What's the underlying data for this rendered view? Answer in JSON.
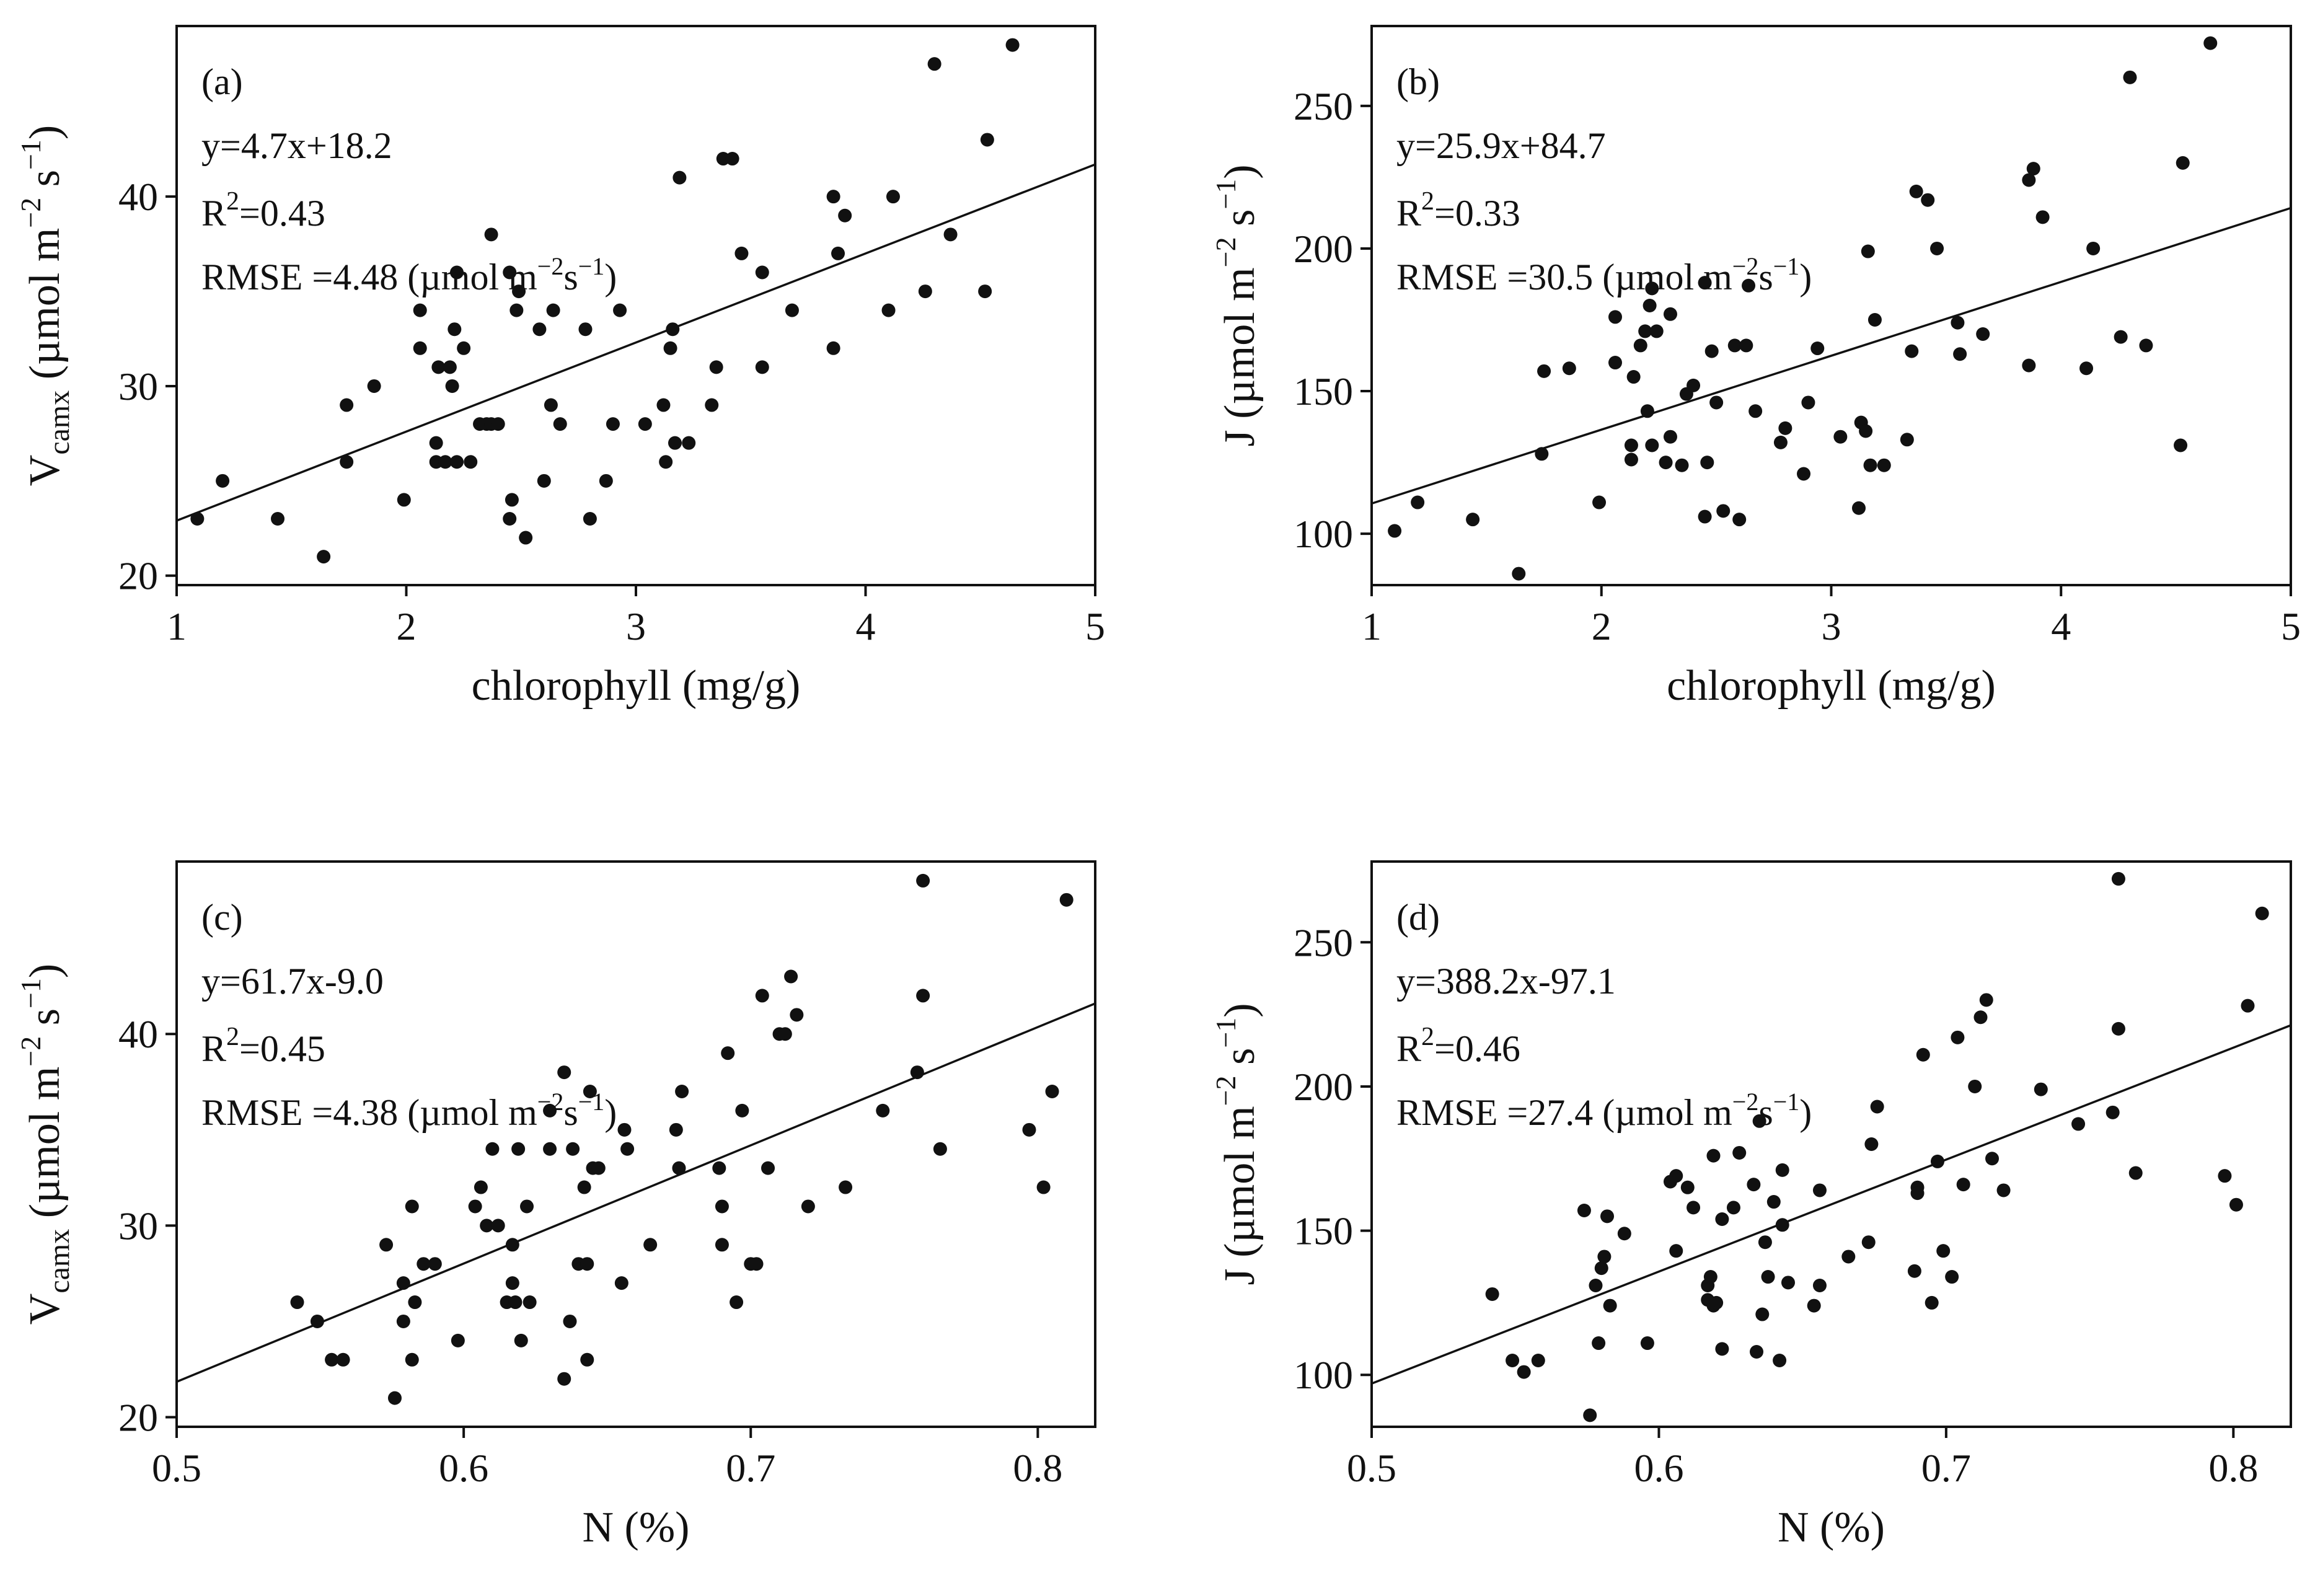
{
  "chart_data": [
    {
      "id": "a",
      "type": "scatter",
      "panel_label": "(a)",
      "equation": "y=4.7x+18.2",
      "r2_prefix": "R",
      "r2_sup": "2",
      "r2_value": "=0.43",
      "rmse_value": "RMSE =4.48",
      "xlabel": "chlorophyll (mg/g)",
      "ylabel_var": "V",
      "ylabel_sub": "camx",
      "xlim": [
        1,
        5
      ],
      "ylim": [
        19.5,
        49
      ],
      "xticks": [
        1,
        2,
        3,
        4,
        5
      ],
      "xtick_labels": [
        "1",
        "2",
        "3",
        "4",
        "5"
      ],
      "yticks": [
        20,
        30,
        40
      ],
      "ytick_labels": [
        "20",
        "30",
        "40"
      ],
      "fit": {
        "slope": 4.7,
        "intercept": 18.2
      },
      "points": [
        [
          1.09,
          23
        ],
        [
          1.2,
          25
        ],
        [
          1.44,
          23
        ],
        [
          1.64,
          21
        ],
        [
          1.74,
          29
        ],
        [
          1.74,
          26
        ],
        [
          1.86,
          30
        ],
        [
          1.99,
          24
        ],
        [
          2.06,
          34
        ],
        [
          2.06,
          32
        ],
        [
          2.13,
          27
        ],
        [
          2.13,
          26
        ],
        [
          2.14,
          31
        ],
        [
          2.17,
          26
        ],
        [
          2.19,
          31
        ],
        [
          2.2,
          30
        ],
        [
          2.21,
          33
        ],
        [
          2.22,
          26
        ],
        [
          2.22,
          36
        ],
        [
          2.25,
          32
        ],
        [
          2.28,
          26
        ],
        [
          2.32,
          28
        ],
        [
          2.35,
          28
        ],
        [
          2.37,
          38
        ],
        [
          2.37,
          28
        ],
        [
          2.4,
          28
        ],
        [
          2.45,
          36
        ],
        [
          2.45,
          23
        ],
        [
          2.46,
          24
        ],
        [
          2.48,
          34
        ],
        [
          2.49,
          35
        ],
        [
          2.52,
          22
        ],
        [
          2.58,
          33
        ],
        [
          2.6,
          25
        ],
        [
          2.63,
          29
        ],
        [
          2.64,
          34
        ],
        [
          2.67,
          28
        ],
        [
          2.78,
          33
        ],
        [
          2.8,
          23
        ],
        [
          2.87,
          25
        ],
        [
          2.9,
          28
        ],
        [
          2.93,
          34
        ],
        [
          3.04,
          28
        ],
        [
          3.12,
          29
        ],
        [
          3.13,
          26
        ],
        [
          3.15,
          32
        ],
        [
          3.16,
          33
        ],
        [
          3.17,
          27
        ],
        [
          3.19,
          41
        ],
        [
          3.23,
          27
        ],
        [
          3.33,
          29
        ],
        [
          3.35,
          31
        ],
        [
          3.38,
          42
        ],
        [
          3.42,
          42
        ],
        [
          3.46,
          37
        ],
        [
          3.55,
          36
        ],
        [
          3.55,
          31
        ],
        [
          3.68,
          34
        ],
        [
          3.86,
          40
        ],
        [
          3.86,
          32
        ],
        [
          3.88,
          37
        ],
        [
          3.91,
          39
        ],
        [
          4.1,
          34
        ],
        [
          4.12,
          40
        ],
        [
          4.26,
          35
        ],
        [
          4.3,
          47
        ],
        [
          4.37,
          38
        ],
        [
          4.52,
          35
        ],
        [
          4.53,
          43
        ],
        [
          4.64,
          48
        ]
      ]
    },
    {
      "id": "b",
      "type": "scatter",
      "panel_label": "(b)",
      "equation": "y=25.9x+84.7",
      "r2_prefix": "R",
      "r2_sup": "2",
      "r2_value": "=0.33",
      "rmse_value": "RMSE =30.5",
      "xlabel": "chlorophyll (mg/g)",
      "ylabel_var": "J",
      "ylabel_sub": "",
      "xlim": [
        1,
        5
      ],
      "ylim": [
        82,
        278
      ],
      "xticks": [
        1,
        2,
        3,
        4,
        5
      ],
      "xtick_labels": [
        "1",
        "2",
        "3",
        "4",
        "5"
      ],
      "yticks": [
        100,
        150,
        200,
        250
      ],
      "ytick_labels": [
        "100",
        "150",
        "200",
        "250"
      ],
      "fit": {
        "slope": 25.9,
        "intercept": 84.7
      },
      "points": [
        [
          1.1,
          101
        ],
        [
          1.2,
          111
        ],
        [
          1.44,
          105
        ],
        [
          1.64,
          86
        ],
        [
          1.74,
          128
        ],
        [
          1.75,
          157
        ],
        [
          1.86,
          158
        ],
        [
          1.99,
          111
        ],
        [
          2.06,
          176
        ],
        [
          2.06,
          160
        ],
        [
          2.13,
          131
        ],
        [
          2.13,
          126
        ],
        [
          2.14,
          155
        ],
        [
          2.17,
          166
        ],
        [
          2.19,
          171
        ],
        [
          2.2,
          143
        ],
        [
          2.21,
          180
        ],
        [
          2.22,
          186
        ],
        [
          2.22,
          131
        ],
        [
          2.24,
          171
        ],
        [
          2.28,
          125
        ],
        [
          2.3,
          177
        ],
        [
          2.3,
          134
        ],
        [
          2.35,
          124
        ],
        [
          2.37,
          149
        ],
        [
          2.4,
          152
        ],
        [
          2.45,
          188
        ],
        [
          2.45,
          106
        ],
        [
          2.46,
          125
        ],
        [
          2.48,
          164
        ],
        [
          2.5,
          146
        ],
        [
          2.53,
          108
        ],
        [
          2.58,
          166
        ],
        [
          2.6,
          105
        ],
        [
          2.63,
          166
        ],
        [
          2.64,
          187
        ],
        [
          2.67,
          143
        ],
        [
          2.78,
          132
        ],
        [
          2.8,
          137
        ],
        [
          2.88,
          121
        ],
        [
          2.9,
          146
        ],
        [
          2.94,
          165
        ],
        [
          3.04,
          134
        ],
        [
          3.12,
          109
        ],
        [
          3.13,
          139
        ],
        [
          3.15,
          136
        ],
        [
          3.16,
          199
        ],
        [
          3.17,
          124
        ],
        [
          3.19,
          175
        ],
        [
          3.23,
          124
        ],
        [
          3.33,
          133
        ],
        [
          3.35,
          164
        ],
        [
          3.37,
          220
        ],
        [
          3.42,
          217
        ],
        [
          3.46,
          200
        ],
        [
          3.55,
          174
        ],
        [
          3.56,
          163
        ],
        [
          3.66,
          170
        ],
        [
          3.86,
          159
        ],
        [
          3.86,
          224
        ],
        [
          3.88,
          228
        ],
        [
          3.92,
          211
        ],
        [
          4.11,
          158
        ],
        [
          4.14,
          200
        ],
        [
          4.26,
          169
        ],
        [
          4.3,
          260
        ],
        [
          4.37,
          166
        ],
        [
          4.52,
          131
        ],
        [
          4.53,
          230
        ],
        [
          4.65,
          272
        ]
      ]
    },
    {
      "id": "c",
      "type": "scatter",
      "panel_label": "(c)",
      "equation": "y=61.7x-9.0",
      "r2_prefix": "R",
      "r2_sup": "2",
      "r2_value": "=0.45",
      "rmse_value": "RMSE =4.38",
      "xlabel": "N (%)",
      "ylabel_var": "V",
      "ylabel_sub": "camx",
      "xlim": [
        0.5,
        0.82
      ],
      "ylim": [
        19.5,
        49
      ],
      "xticks": [
        0.5,
        0.6,
        0.7,
        0.8
      ],
      "xtick_labels": [
        "0.5",
        "0.6",
        "0.7",
        "0.8"
      ],
      "yticks": [
        20,
        30,
        40
      ],
      "ytick_labels": [
        "20",
        "30",
        "40"
      ],
      "fit": {
        "slope": 61.7,
        "intercept": -9.0
      },
      "points": [
        [
          0.542,
          26
        ],
        [
          0.549,
          25
        ],
        [
          0.554,
          23
        ],
        [
          0.558,
          23
        ],
        [
          0.573,
          29
        ],
        [
          0.576,
          21
        ],
        [
          0.579,
          27
        ],
        [
          0.579,
          25
        ],
        [
          0.582,
          31
        ],
        [
          0.582,
          23
        ],
        [
          0.583,
          26
        ],
        [
          0.586,
          28
        ],
        [
          0.59,
          28
        ],
        [
          0.598,
          24
        ],
        [
          0.604,
          31
        ],
        [
          0.606,
          32
        ],
        [
          0.608,
          30
        ],
        [
          0.61,
          34
        ],
        [
          0.612,
          30
        ],
        [
          0.615,
          26
        ],
        [
          0.617,
          27
        ],
        [
          0.617,
          29
        ],
        [
          0.618,
          26
        ],
        [
          0.619,
          34
        ],
        [
          0.62,
          24
        ],
        [
          0.622,
          31
        ],
        [
          0.623,
          26
        ],
        [
          0.63,
          34
        ],
        [
          0.63,
          36
        ],
        [
          0.635,
          38
        ],
        [
          0.635,
          22
        ],
        [
          0.637,
          25
        ],
        [
          0.638,
          34
        ],
        [
          0.64,
          28
        ],
        [
          0.642,
          32
        ],
        [
          0.643,
          28
        ],
        [
          0.643,
          23
        ],
        [
          0.644,
          37
        ],
        [
          0.645,
          33
        ],
        [
          0.647,
          33
        ],
        [
          0.655,
          27
        ],
        [
          0.656,
          35
        ],
        [
          0.657,
          34
        ],
        [
          0.665,
          29
        ],
        [
          0.674,
          35
        ],
        [
          0.675,
          33
        ],
        [
          0.676,
          37
        ],
        [
          0.689,
          33
        ],
        [
          0.69,
          29
        ],
        [
          0.69,
          31
        ],
        [
          0.692,
          39
        ],
        [
          0.695,
          26
        ],
        [
          0.697,
          36
        ],
        [
          0.7,
          28
        ],
        [
          0.702,
          28
        ],
        [
          0.704,
          42
        ],
        [
          0.706,
          33
        ],
        [
          0.71,
          40
        ],
        [
          0.712,
          40
        ],
        [
          0.714,
          43
        ],
        [
          0.716,
          41
        ],
        [
          0.72,
          31
        ],
        [
          0.733,
          32
        ],
        [
          0.746,
          36
        ],
        [
          0.758,
          38
        ],
        [
          0.76,
          48
        ],
        [
          0.76,
          42
        ],
        [
          0.766,
          34
        ],
        [
          0.797,
          35
        ],
        [
          0.802,
          32
        ],
        [
          0.805,
          37
        ],
        [
          0.81,
          47
        ]
      ]
    },
    {
      "id": "d",
      "type": "scatter",
      "panel_label": "(d)",
      "equation": "y=388.2x-97.1",
      "r2_prefix": "R",
      "r2_sup": "2",
      "r2_value": "=0.46",
      "rmse_value": "RMSE =27.4",
      "xlabel": "N (%)",
      "ylabel_var": "J",
      "ylabel_sub": "",
      "xlim": [
        0.5,
        0.82
      ],
      "ylim": [
        82,
        278
      ],
      "xticks": [
        0.5,
        0.6,
        0.7,
        0.8
      ],
      "xtick_labels": [
        "0.5",
        "0.6",
        "0.7",
        "0.8"
      ],
      "yticks": [
        100,
        150,
        200,
        250
      ],
      "ytick_labels": [
        "100",
        "150",
        "200",
        "250"
      ],
      "fit": {
        "slope": 388.2,
        "intercept": -97.1
      },
      "points": [
        [
          0.542,
          128
        ],
        [
          0.549,
          105
        ],
        [
          0.553,
          101
        ],
        [
          0.558,
          105
        ],
        [
          0.574,
          157
        ],
        [
          0.576,
          86
        ],
        [
          0.578,
          131
        ],
        [
          0.579,
          111
        ],
        [
          0.58,
          137
        ],
        [
          0.581,
          141
        ],
        [
          0.582,
          155
        ],
        [
          0.583,
          124
        ],
        [
          0.588,
          149
        ],
        [
          0.596,
          111
        ],
        [
          0.604,
          167
        ],
        [
          0.606,
          169
        ],
        [
          0.606,
          143
        ],
        [
          0.61,
          165
        ],
        [
          0.612,
          158
        ],
        [
          0.617,
          131
        ],
        [
          0.617,
          126
        ],
        [
          0.618,
          134
        ],
        [
          0.619,
          124
        ],
        [
          0.619,
          176
        ],
        [
          0.62,
          125
        ],
        [
          0.622,
          154
        ],
        [
          0.622,
          109
        ],
        [
          0.626,
          158
        ],
        [
          0.628,
          177
        ],
        [
          0.633,
          166
        ],
        [
          0.634,
          108
        ],
        [
          0.635,
          188
        ],
        [
          0.636,
          121
        ],
        [
          0.637,
          146
        ],
        [
          0.638,
          134
        ],
        [
          0.64,
          160
        ],
        [
          0.642,
          105
        ],
        [
          0.643,
          152
        ],
        [
          0.643,
          171
        ],
        [
          0.645,
          132
        ],
        [
          0.654,
          124
        ],
        [
          0.656,
          131
        ],
        [
          0.656,
          164
        ],
        [
          0.666,
          141
        ],
        [
          0.673,
          146
        ],
        [
          0.674,
          180
        ],
        [
          0.676,
          193
        ],
        [
          0.689,
          136
        ],
        [
          0.69,
          165
        ],
        [
          0.69,
          163
        ],
        [
          0.692,
          211
        ],
        [
          0.695,
          125
        ],
        [
          0.697,
          174
        ],
        [
          0.699,
          143
        ],
        [
          0.702,
          134
        ],
        [
          0.704,
          217
        ],
        [
          0.706,
          166
        ],
        [
          0.71,
          200
        ],
        [
          0.712,
          224
        ],
        [
          0.714,
          230
        ],
        [
          0.716,
          175
        ],
        [
          0.72,
          164
        ],
        [
          0.733,
          199
        ],
        [
          0.746,
          187
        ],
        [
          0.758,
          191
        ],
        [
          0.76,
          272
        ],
        [
          0.76,
          220
        ],
        [
          0.766,
          170
        ],
        [
          0.797,
          169
        ],
        [
          0.801,
          159
        ],
        [
          0.805,
          228
        ],
        [
          0.81,
          260
        ]
      ]
    }
  ]
}
